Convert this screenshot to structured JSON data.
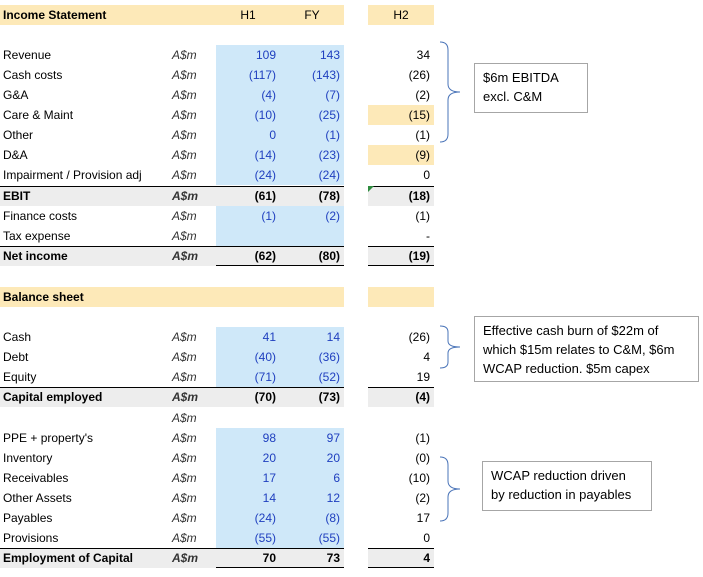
{
  "income_statement": {
    "title": "Income Statement",
    "col_h1": "H1",
    "col_fy": "FY",
    "col_h2": "H2",
    "rows": [
      {
        "label": "Revenue",
        "unit": "A$m",
        "h1": "109",
        "fy": "143",
        "h2": "34"
      },
      {
        "label": "Cash costs",
        "unit": "A$m",
        "h1": "(117)",
        "fy": "(143)",
        "h2": "(26)"
      },
      {
        "label": "G&A",
        "unit": "A$m",
        "h1": "(4)",
        "fy": "(7)",
        "h2": "(2)"
      },
      {
        "label": "Care & Maint",
        "unit": "A$m",
        "h1": "(10)",
        "fy": "(25)",
        "h2": "(15)"
      },
      {
        "label": "Other",
        "unit": "A$m",
        "h1": "0",
        "fy": "(1)",
        "h2": "(1)"
      },
      {
        "label": "D&A",
        "unit": "A$m",
        "h1": "(14)",
        "fy": "(23)",
        "h2": "(9)"
      },
      {
        "label": "Impairment / Provision adj",
        "unit": "A$m",
        "h1": "(24)",
        "fy": "(24)",
        "h2": "0"
      },
      {
        "label": "EBIT",
        "unit": "A$m",
        "h1": "(61)",
        "fy": "(78)",
        "h2": "(18)"
      },
      {
        "label": "Finance costs",
        "unit": "A$m",
        "h1": "(1)",
        "fy": "(2)",
        "h2": "(1)"
      },
      {
        "label": "Tax expense",
        "unit": "A$m",
        "h1": "",
        "fy": "",
        "h2": "-"
      },
      {
        "label": "Net income",
        "unit": "A$m",
        "h1": "(62)",
        "fy": "(80)",
        "h2": "(19)"
      }
    ]
  },
  "balance_sheet": {
    "title": "Balance sheet",
    "rows": [
      {
        "label": "Cash",
        "unit": "A$m",
        "h1": "41",
        "fy": "14",
        "h2": "(26)"
      },
      {
        "label": "Debt",
        "unit": "A$m",
        "h1": "(40)",
        "fy": "(36)",
        "h2": "4"
      },
      {
        "label": "Equity",
        "unit": "A$m",
        "h1": "(71)",
        "fy": "(52)",
        "h2": "19"
      },
      {
        "label": "Capital employed",
        "unit": "A$m",
        "h1": "(70)",
        "fy": "(73)",
        "h2": "(4)"
      },
      {
        "label": "",
        "unit": "A$m",
        "h1": "",
        "fy": "",
        "h2": ""
      },
      {
        "label": "PPE + property's",
        "unit": "A$m",
        "h1": "98",
        "fy": "97",
        "h2": "(1)"
      },
      {
        "label": "Inventory",
        "unit": "A$m",
        "h1": "20",
        "fy": "20",
        "h2": "(0)"
      },
      {
        "label": "Receivables",
        "unit": "A$m",
        "h1": "17",
        "fy": "6",
        "h2": "(10)"
      },
      {
        "label": "Other Assets",
        "unit": "A$m",
        "h1": "14",
        "fy": "12",
        "h2": "(2)"
      },
      {
        "label": "Payables",
        "unit": "A$m",
        "h1": "(24)",
        "fy": "(8)",
        "h2": "17"
      },
      {
        "label": "Provisions",
        "unit": "A$m",
        "h1": "(55)",
        "fy": "(55)",
        "h2": "0"
      },
      {
        "label": "Employment of Capital",
        "unit": "A$m",
        "h1": "70",
        "fy": "73",
        "h2": "4"
      }
    ]
  },
  "notes": {
    "ebitda_line1": "$6m EBITDA",
    "ebitda_line2": "excl. C&M",
    "cash_line1": "Effective cash burn of $22m of",
    "cash_line2": "which $15m relates to C&M, $6m",
    "cash_line3": "WCAP reduction. $5m capex",
    "wcap_line1": "WCAP reduction driven",
    "wcap_line2": "by reduction in payables"
  },
  "colors": {
    "header_fill": "#fde9b8",
    "input_fill": "#cfe8f9",
    "total_fill": "#ededed",
    "input_text": "#1f3fbf"
  }
}
